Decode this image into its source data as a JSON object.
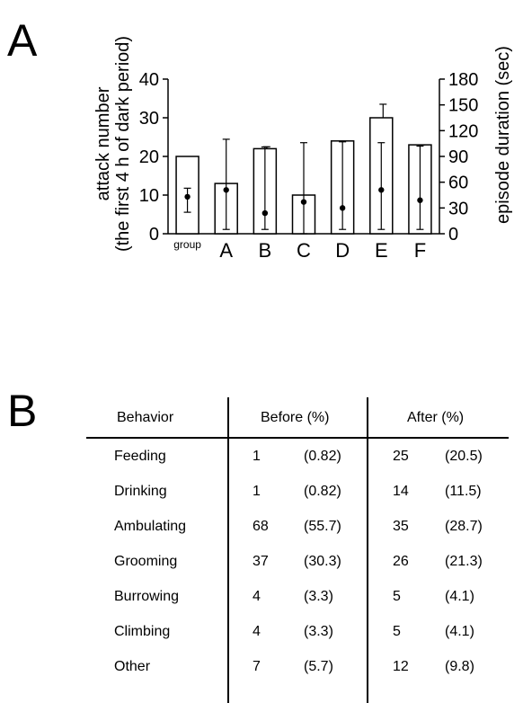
{
  "panel_a_letter": "A",
  "panel_b_letter": "B",
  "chart_data": {
    "type": "bar",
    "categories": [
      "group",
      "A",
      "B",
      "C",
      "D",
      "E",
      "F"
    ],
    "series": [
      {
        "axis": "left",
        "kind": "bar",
        "values": [
          20,
          13,
          22,
          10,
          24,
          30,
          23
        ],
        "err_high": [
          null,
          null,
          22.5,
          null,
          null,
          33.5,
          23
        ]
      },
      {
        "axis": "right",
        "kind": "point",
        "values": [
          43,
          51,
          24,
          37,
          30,
          51,
          39
        ],
        "err_low": [
          25,
          5,
          5,
          0,
          5,
          5,
          5
        ],
        "err_high": [
          53,
          110,
          101,
          106,
          107,
          106,
          102
        ]
      }
    ],
    "ylabel": [
      "attack number",
      "(the first 4 h of dark period)"
    ],
    "ylim": [
      0,
      40
    ],
    "yticks": [
      0,
      10,
      20,
      30,
      40
    ],
    "y2label": "episode duration (sec)",
    "y2lim": [
      0,
      180
    ],
    "y2ticks": [
      0,
      30,
      60,
      90,
      120,
      150,
      180
    ]
  },
  "table": {
    "headers": {
      "behavior": "Behavior",
      "before": "Before (%)",
      "after": "After (%)"
    },
    "rows": [
      {
        "behavior": "Feeding",
        "before_n": "1",
        "before_pct": "(0.82)",
        "after_n": "25",
        "after_pct": "(20.5)"
      },
      {
        "behavior": "Drinking",
        "before_n": "1",
        "before_pct": "(0.82)",
        "after_n": "14",
        "after_pct": "(11.5)"
      },
      {
        "behavior": "Ambulating",
        "before_n": "68",
        "before_pct": "(55.7)",
        "after_n": "35",
        "after_pct": "(28.7)"
      },
      {
        "behavior": "Grooming",
        "before_n": "37",
        "before_pct": "(30.3)",
        "after_n": "26",
        "after_pct": "(21.3)"
      },
      {
        "behavior": "Burrowing",
        "before_n": "4",
        "before_pct": "(3.3)",
        "after_n": "5",
        "after_pct": "(4.1)"
      },
      {
        "behavior": "Climbing",
        "before_n": "4",
        "before_pct": "(3.3)",
        "after_n": "5",
        "after_pct": "(4.1)"
      },
      {
        "behavior": "Other",
        "before_n": "7",
        "before_pct": "(5.7)",
        "after_n": "12",
        "after_pct": "(9.8)"
      }
    ]
  }
}
